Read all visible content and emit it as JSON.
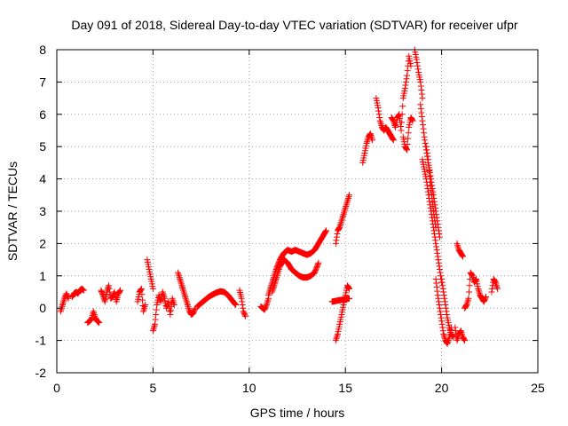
{
  "chart_data": {
    "type": "scatter",
    "title": "Day 091 of 2018, Sidereal Day-to-day VTEC variation (SDTVAR) for receiver ufpr",
    "xlabel": "GPS time / hours",
    "ylabel": "SDTVAR / TECUs",
    "xlim": [
      0,
      25
    ],
    "ylim": [
      -2,
      8
    ],
    "xticks": [
      0,
      5,
      10,
      15,
      20,
      25
    ],
    "yticks": [
      -2,
      -1,
      0,
      1,
      2,
      3,
      4,
      5,
      6,
      7,
      8
    ],
    "grid": true,
    "marker": "+",
    "color": "#ff0000",
    "segments": [
      {
        "x": [
          0.2,
          0.3,
          0.4,
          0.5,
          0.6
        ],
        "y": [
          -0.1,
          0.1,
          0.3,
          0.45,
          0.3
        ]
      },
      {
        "x": [
          0.8,
          0.9,
          1.0,
          1.1,
          1.2,
          1.3,
          1.4
        ],
        "y": [
          0.35,
          0.45,
          0.5,
          0.45,
          0.55,
          0.6,
          0.55
        ]
      },
      {
        "x": [
          1.6,
          1.7,
          1.8,
          1.9,
          2.0,
          2.1,
          2.2
        ],
        "y": [
          -0.45,
          -0.4,
          -0.35,
          -0.1,
          -0.3,
          -0.4,
          -0.45
        ]
      },
      {
        "x": [
          2.3,
          2.4,
          2.5,
          2.6,
          2.7,
          2.8,
          2.9,
          3.0,
          3.1,
          3.2,
          3.3
        ],
        "y": [
          0.55,
          0.4,
          0.2,
          0.5,
          0.7,
          0.3,
          0.35,
          0.5,
          0.2,
          0.45,
          0.55
        ]
      },
      {
        "x": [
          4.2,
          4.3,
          4.4,
          4.5,
          4.6
        ],
        "y": [
          0.2,
          0.5,
          0.6,
          -0.1,
          0.1
        ]
      },
      {
        "x": [
          4.7,
          4.8,
          4.9,
          5.0
        ],
        "y": [
          1.5,
          1.2,
          0.9,
          0.6
        ]
      },
      {
        "x": [
          5.0,
          5.1,
          5.2,
          5.3,
          5.4,
          5.5,
          5.6,
          5.7,
          5.8,
          5.9,
          6.0,
          6.1
        ],
        "y": [
          -0.7,
          -0.5,
          0.1,
          0.4,
          0.2,
          0.5,
          0.3,
          0.0,
          0.2,
          -0.2,
          0.3,
          0.1
        ]
      },
      {
        "x": [
          6.3,
          6.4,
          6.5,
          6.6,
          6.7,
          6.8,
          6.9,
          7.0,
          7.1,
          7.2
        ],
        "y": [
          1.1,
          0.9,
          0.7,
          0.5,
          0.3,
          0.1,
          -0.1,
          -0.2,
          -0.15,
          0.0
        ]
      },
      {
        "x": [
          7.3,
          7.5,
          7.7,
          7.9,
          8.1,
          8.3,
          8.5,
          8.7,
          8.9,
          9.1,
          9.3
        ],
        "y": [
          0.05,
          0.15,
          0.25,
          0.35,
          0.42,
          0.48,
          0.52,
          0.5,
          0.4,
          0.25,
          0.1
        ]
      },
      {
        "x": [
          9.5,
          9.6,
          9.7,
          9.8
        ],
        "y": [
          0.55,
          0.3,
          -0.1,
          -0.25
        ]
      },
      {
        "x": [
          10.6,
          10.7,
          10.8,
          10.9,
          11.0
        ],
        "y": [
          0.05,
          0.0,
          -0.05,
          0.1,
          0.3
        ]
      },
      {
        "x": [
          11.0,
          11.2,
          11.4,
          11.6,
          11.8,
          12.0,
          12.2
        ],
        "y": [
          0.4,
          0.8,
          1.2,
          1.5,
          1.7,
          1.8,
          1.75
        ]
      },
      {
        "x": [
          11.2,
          11.4,
          11.6,
          11.8,
          12.0,
          12.2,
          12.4,
          12.6,
          12.8,
          13.0,
          13.2,
          13.4,
          13.6
        ],
        "y": [
          0.5,
          0.9,
          1.3,
          1.5,
          1.4,
          1.2,
          1.1,
          1.0,
          0.95,
          0.95,
          1.0,
          1.1,
          1.4
        ]
      },
      {
        "x": [
          12.2,
          12.4,
          12.6,
          12.8,
          13.0,
          13.2,
          13.4,
          13.6,
          13.8,
          14.0
        ],
        "y": [
          1.75,
          1.8,
          1.75,
          1.7,
          1.65,
          1.7,
          1.8,
          2.0,
          2.2,
          2.4
        ]
      },
      {
        "x": [
          14.5,
          14.6,
          14.7,
          14.8,
          14.9,
          15.0,
          15.1,
          15.2
        ],
        "y": [
          -1.0,
          -0.8,
          -0.5,
          -0.2,
          0.1,
          0.4,
          0.7,
          0.6
        ]
      },
      {
        "x": [
          14.3,
          15.2
        ],
        "y": [
          0.2,
          0.3
        ]
      },
      {
        "x": [
          14.5,
          14.6,
          14.7,
          14.8,
          14.9,
          15.0,
          15.1,
          15.2
        ],
        "y": [
          2.0,
          2.4,
          2.5,
          2.7,
          2.9,
          3.1,
          3.3,
          3.5
        ]
      },
      {
        "x": [
          15.9,
          16.0,
          16.1,
          16.2,
          16.3,
          16.4
        ],
        "y": [
          4.5,
          4.8,
          5.1,
          5.3,
          5.4,
          5.2
        ]
      },
      {
        "x": [
          16.6,
          16.7,
          16.8,
          16.9,
          17.0,
          17.1,
          17.2,
          17.3,
          17.4,
          17.5
        ],
        "y": [
          6.5,
          6.2,
          5.8,
          5.6,
          5.5,
          5.6,
          5.5,
          5.4,
          5.3,
          5.2
        ]
      },
      {
        "x": [
          17.4,
          17.5,
          17.6,
          17.7,
          17.8,
          17.9,
          18.0,
          18.1,
          18.2,
          18.3,
          18.4
        ],
        "y": [
          5.9,
          5.8,
          5.6,
          5.9,
          6.0,
          5.5,
          6.5,
          6.8,
          7.2,
          7.8,
          7.5
        ]
      },
      {
        "x": [
          18.0,
          18.1,
          18.2,
          18.3,
          18.4,
          18.5
        ],
        "y": [
          5.3,
          5.0,
          4.9,
          5.6,
          5.9,
          5.8
        ]
      },
      {
        "x": [
          18.6,
          18.7,
          18.8,
          18.9,
          19.0
        ],
        "y": [
          8.0,
          7.7,
          7.3,
          7.0,
          6.5
        ]
      },
      {
        "x": [
          18.9,
          19.0,
          19.1,
          19.2,
          19.3,
          19.4,
          19.5,
          19.6,
          19.7,
          19.8,
          19.9
        ],
        "y": [
          6.3,
          5.8,
          5.3,
          4.9,
          4.5,
          4.2,
          3.8,
          3.4,
          3.0,
          2.6,
          2.2
        ]
      },
      {
        "x": [
          19.0,
          19.1,
          19.2,
          19.3,
          19.4,
          19.5,
          19.6,
          19.7,
          19.8,
          19.9,
          20.0
        ],
        "y": [
          4.6,
          4.3,
          4.0,
          3.6,
          3.2,
          2.8,
          2.4,
          2.0,
          1.6,
          1.2,
          0.8
        ]
      },
      {
        "x": [
          19.2,
          19.3,
          19.4,
          19.5,
          19.6,
          19.7
        ],
        "y": [
          5.0,
          4.6,
          3.9,
          3.4,
          2.9,
          2.5
        ]
      },
      {
        "x": [
          19.7,
          19.8,
          19.9,
          20.0,
          20.1,
          20.2,
          20.3,
          20.4,
          20.5
        ],
        "y": [
          0.9,
          0.4,
          0.0,
          -0.4,
          -0.8,
          -1.0,
          -1.1,
          -0.9,
          -0.6
        ]
      },
      {
        "x": [
          20.0,
          20.1,
          20.2,
          20.3,
          20.4,
          20.5,
          20.6
        ],
        "y": [
          0.9,
          0.5,
          0.1,
          -0.3,
          -0.6,
          -0.8,
          -0.9
        ]
      },
      {
        "x": [
          20.7,
          20.8,
          20.9,
          21.0,
          21.1,
          21.2
        ],
        "y": [
          -0.6,
          -1.0,
          -0.8,
          -0.7,
          -0.9,
          -1.0
        ]
      },
      {
        "x": [
          20.8,
          20.9,
          21.0,
          21.1
        ],
        "y": [
          2.0,
          1.8,
          1.7,
          1.6
        ]
      },
      {
        "x": [
          21.2,
          21.3,
          21.4,
          21.5,
          21.6,
          21.7,
          21.8,
          21.9,
          22.0,
          22.1,
          22.2,
          22.3
        ],
        "y": [
          0.0,
          0.1,
          0.3,
          1.1,
          1.0,
          0.8,
          0.9,
          0.6,
          0.4,
          0.3,
          0.2,
          0.35
        ]
      },
      {
        "x": [
          22.6,
          22.7,
          22.8,
          22.9
        ],
        "y": [
          0.5,
          0.9,
          0.8,
          0.6
        ]
      }
    ]
  }
}
